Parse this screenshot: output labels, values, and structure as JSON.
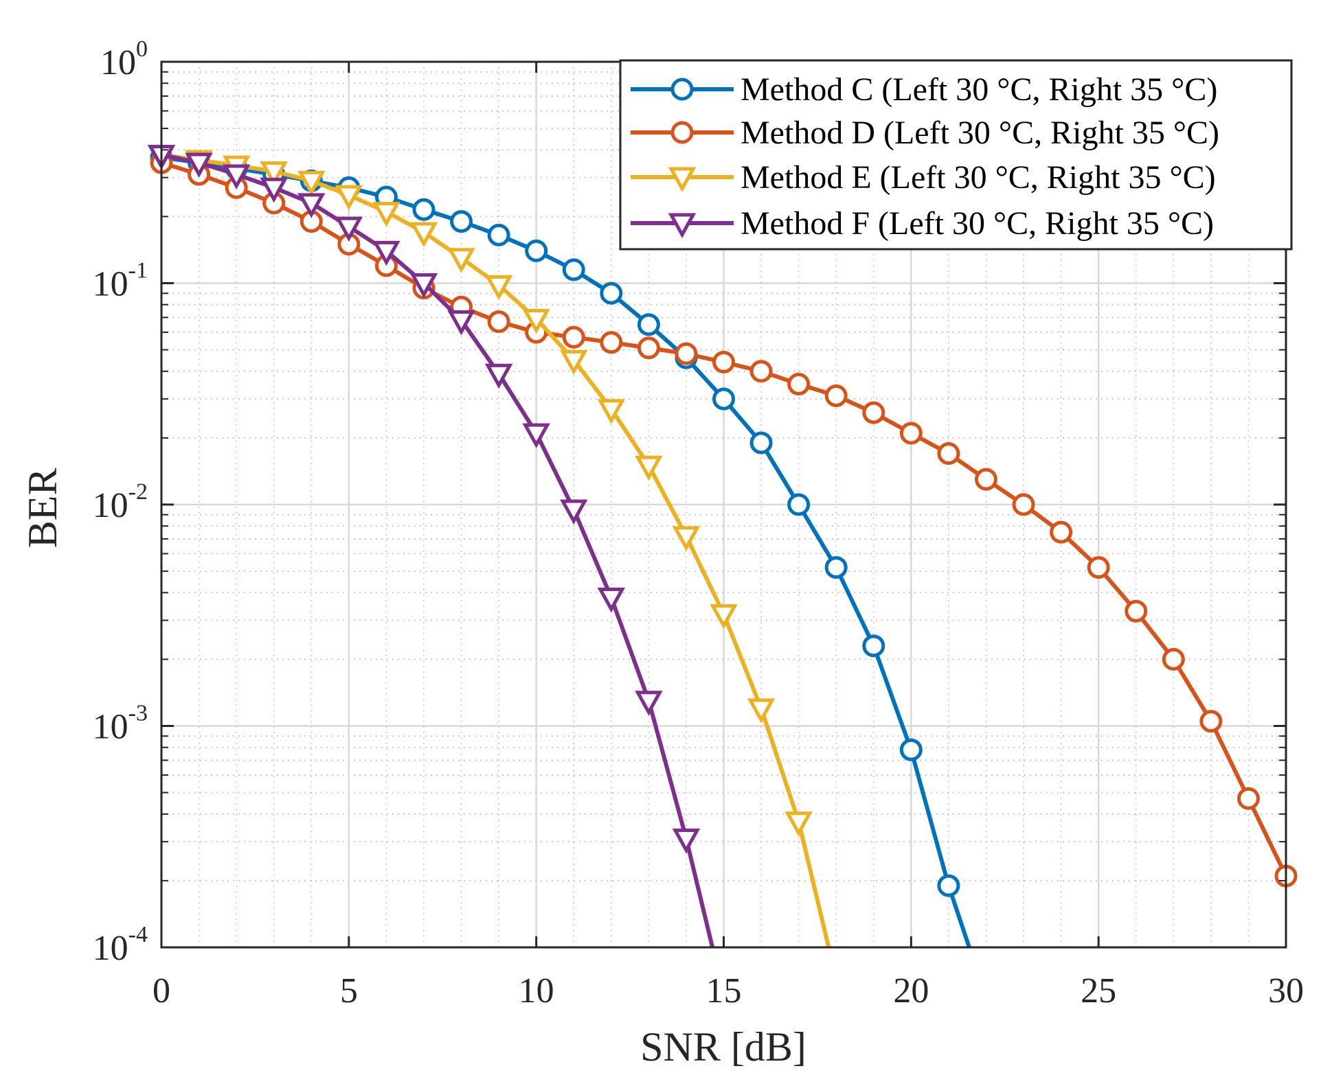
{
  "chart_data": {
    "type": "line",
    "title": "",
    "xlabel": "SNR [dB]",
    "ylabel": "BER",
    "xlim": [
      0,
      30
    ],
    "ylim": [
      0.0001,
      1
    ],
    "yscale": "log",
    "grid": true,
    "minor_grid": true,
    "legend_position": "top-right",
    "x_ticks": [
      "0",
      "5",
      "10",
      "15",
      "20",
      "25",
      "30"
    ],
    "y_ticks": [
      {
        "base": "10",
        "exp": "0"
      },
      {
        "base": "10",
        "exp": "-1"
      },
      {
        "base": "10",
        "exp": "-2"
      },
      {
        "base": "10",
        "exp": "-3"
      },
      {
        "base": "10",
        "exp": "-4"
      }
    ],
    "series": [
      {
        "name": "Method C (Left 30 °C, Right 35 °C)",
        "color": "#0072BD",
        "marker": "circle",
        "x": [
          0,
          1,
          2,
          3,
          4,
          5,
          6,
          7,
          8,
          9,
          10,
          11,
          12,
          13,
          14,
          15,
          16,
          17,
          18,
          19,
          20,
          21,
          21.55
        ],
        "values": [
          0.37,
          0.35,
          0.33,
          0.31,
          0.29,
          0.27,
          0.245,
          0.215,
          0.19,
          0.165,
          0.14,
          0.115,
          0.09,
          0.065,
          0.046,
          0.03,
          0.019,
          0.01,
          0.0052,
          0.0023,
          0.00078,
          0.00019,
          0.0001
        ]
      },
      {
        "name": "Method D (Left 30 °C, Right 35 °C)",
        "color": "#D95319",
        "marker": "circle",
        "x": [
          0,
          1,
          2,
          3,
          4,
          5,
          6,
          7,
          8,
          9,
          10,
          11,
          12,
          13,
          14,
          15,
          16,
          17,
          18,
          19,
          20,
          21,
          22,
          23,
          24,
          25,
          26,
          27,
          28,
          29,
          30
        ],
        "values": [
          0.35,
          0.31,
          0.27,
          0.23,
          0.19,
          0.15,
          0.12,
          0.095,
          0.078,
          0.067,
          0.06,
          0.057,
          0.054,
          0.051,
          0.048,
          0.044,
          0.04,
          0.035,
          0.031,
          0.026,
          0.021,
          0.017,
          0.013,
          0.01,
          0.0075,
          0.0052,
          0.0033,
          0.002,
          0.00105,
          0.00047,
          0.00021
        ]
      },
      {
        "name": "Method E (Left 30 °C, Right 35 °C)",
        "color": "#EDB120",
        "marker": "triangle-down",
        "x": [
          0,
          1,
          2,
          3,
          4,
          5,
          6,
          7,
          8,
          9,
          10,
          11,
          12,
          13,
          14,
          15,
          16,
          17,
          17.8
        ],
        "values": [
          0.38,
          0.36,
          0.34,
          0.32,
          0.29,
          0.25,
          0.21,
          0.17,
          0.13,
          0.098,
          0.069,
          0.045,
          0.027,
          0.015,
          0.0072,
          0.0032,
          0.0012,
          0.00037,
          0.0001
        ]
      },
      {
        "name": "Method F (Left 30 °C, Right 35 °C)",
        "color": "#7E2F8E",
        "marker": "triangle-down",
        "x": [
          0,
          1,
          2,
          3,
          4,
          5,
          6,
          7,
          8,
          9,
          10,
          11,
          12,
          13,
          14,
          14.7
        ],
        "values": [
          0.38,
          0.35,
          0.31,
          0.27,
          0.23,
          0.18,
          0.14,
          0.1,
          0.068,
          0.039,
          0.021,
          0.0095,
          0.0038,
          0.0013,
          0.00031,
          0.0001
        ]
      }
    ]
  }
}
